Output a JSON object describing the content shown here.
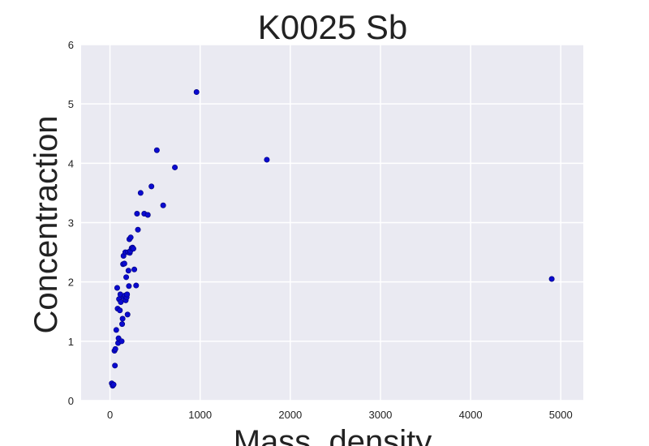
{
  "chart_data": {
    "type": "scatter",
    "title": "K0025 Sb",
    "xlabel": "Mass_density",
    "ylabel": "Concentraction",
    "xlim": [
      -320,
      5250
    ],
    "ylim": [
      0,
      6
    ],
    "xticks": [
      0,
      1000,
      2000,
      3000,
      4000,
      5000
    ],
    "yticks": [
      0,
      1,
      2,
      3,
      4,
      5,
      6
    ],
    "grid": true,
    "colors": {
      "background": "#eaeaf2",
      "grid": "#ffffff",
      "point": "#0a0acf",
      "point_edge": "#00007a"
    },
    "series": [
      {
        "x": [
          20,
          30,
          40,
          50,
          55,
          60,
          70,
          80,
          85,
          90,
          95,
          100,
          110,
          115,
          120,
          130,
          135,
          140,
          145,
          150,
          155,
          160,
          165,
          170,
          175,
          180,
          185,
          190,
          195,
          200,
          205,
          210,
          215,
          220,
          225,
          230,
          240,
          250,
          260,
          270,
          290,
          300,
          310,
          340,
          380,
          420,
          460,
          520,
          590,
          720,
          960,
          1740,
          4900
        ],
        "y": [
          0.29,
          0.25,
          0.27,
          0.84,
          0.59,
          0.87,
          1.19,
          1.9,
          1.55,
          0.97,
          1.05,
          1.71,
          1.52,
          1.79,
          1.66,
          1.0,
          1.29,
          1.38,
          2.3,
          2.44,
          1.74,
          2.31,
          1.77,
          2.5,
          1.69,
          2.08,
          1.74,
          1.79,
          1.45,
          2.5,
          2.19,
          1.93,
          2.72,
          2.49,
          2.52,
          2.75,
          2.57,
          2.58,
          2.56,
          2.21,
          1.94,
          3.15,
          2.88,
          3.5,
          3.15,
          3.13,
          3.61,
          4.22,
          3.29,
          3.93,
          5.2,
          4.06,
          2.05
        ]
      }
    ]
  }
}
